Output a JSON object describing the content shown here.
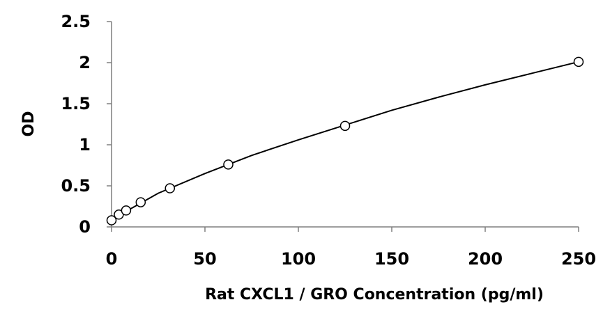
{
  "chart_data": {
    "type": "scatter",
    "xlabel": "Rat CXCL1 / GRO Concentration (pg/ml)",
    "ylabel": "OD",
    "xlim": [
      0,
      250
    ],
    "ylim": [
      0,
      2.5
    ],
    "x_ticks": [
      "0",
      "50",
      "100",
      "150",
      "200",
      "250"
    ],
    "y_ticks": [
      "0",
      "0.5",
      "1",
      "1.5",
      "2",
      "2.5"
    ],
    "grid": false,
    "legend": "none",
    "series": [
      {
        "x": [
          0,
          3.9,
          7.8,
          15.6,
          31.25,
          62.5,
          125,
          250
        ],
        "y": [
          0.08,
          0.15,
          0.2,
          0.3,
          0.47,
          0.76,
          1.23,
          2.01
        ]
      }
    ],
    "trendline": {
      "type": "polynomial",
      "x": [
        0,
        25,
        50,
        75,
        100,
        125,
        150,
        175,
        200,
        225,
        250
      ],
      "y": [
        0.09,
        0.41,
        0.65,
        0.87,
        1.06,
        1.24,
        1.42,
        1.58,
        1.73,
        1.87,
        2.01
      ]
    }
  }
}
